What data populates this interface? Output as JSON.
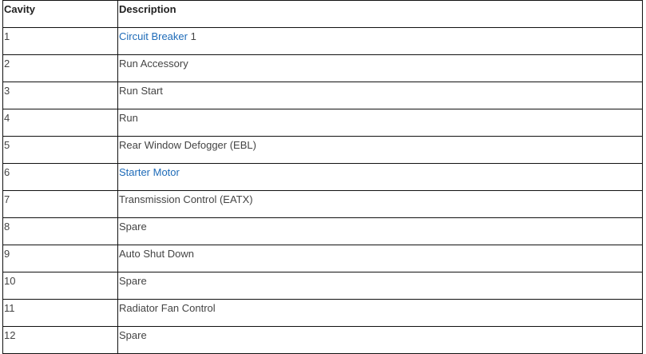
{
  "table": {
    "headers": [
      "Cavity",
      "Description"
    ],
    "rows": [
      {
        "cavity": "1",
        "link": "Circuit Breaker",
        "suffix": " 1"
      },
      {
        "cavity": "2",
        "text": "Run Accessory"
      },
      {
        "cavity": "3",
        "text": "Run Start"
      },
      {
        "cavity": "4",
        "text": "Run"
      },
      {
        "cavity": "5",
        "text": "Rear Window Defogger (EBL)"
      },
      {
        "cavity": "6",
        "link": "Starter Motor"
      },
      {
        "cavity": "7",
        "text": "Transmission Control (EATX)"
      },
      {
        "cavity": "8",
        "text": "Spare"
      },
      {
        "cavity": "9",
        "text": "Auto Shut Down"
      },
      {
        "cavity": "10",
        "text": "Spare"
      },
      {
        "cavity": "11",
        "text": "Radiator Fan Control"
      },
      {
        "cavity": "12",
        "text": "Spare"
      }
    ]
  },
  "colors": {
    "link": "#1e6bb8",
    "text": "#444444"
  }
}
